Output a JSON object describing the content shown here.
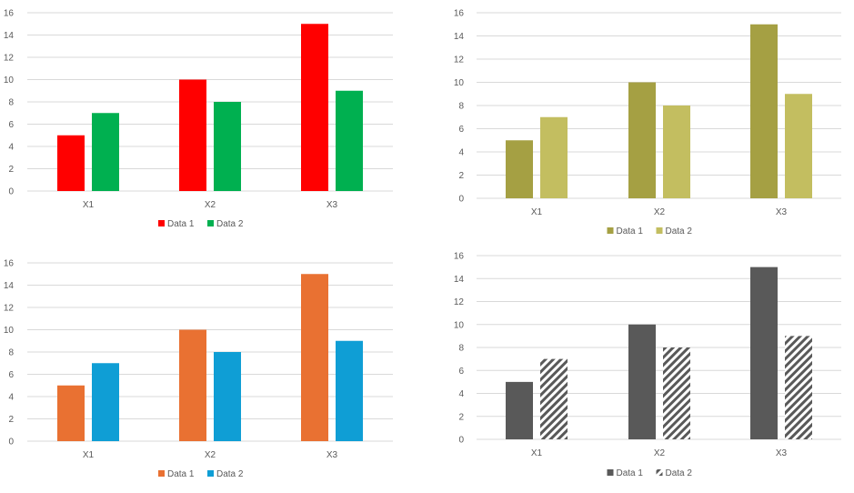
{
  "chart_data": [
    {
      "type": "bar",
      "categories": [
        "X1",
        "X2",
        "X3"
      ],
      "series": [
        {
          "name": "Data 1",
          "values": [
            5,
            10,
            15
          ],
          "color": "#FF0000"
        },
        {
          "name": "Data 2",
          "values": [
            7,
            8,
            9
          ],
          "color": "#00B050"
        }
      ],
      "ylim": [
        0,
        16
      ],
      "yticks": [
        0,
        2,
        4,
        6,
        8,
        10,
        12,
        14,
        16
      ],
      "grid": true,
      "legend": "bottom"
    },
    {
      "type": "bar",
      "categories": [
        "X1",
        "X2",
        "X3"
      ],
      "series": [
        {
          "name": "Data 1",
          "values": [
            5,
            10,
            15
          ],
          "color": "#A5A043"
        },
        {
          "name": "Data 2",
          "values": [
            7,
            8,
            9
          ],
          "color": "#C3BE60"
        }
      ],
      "ylim": [
        0,
        16
      ],
      "yticks": [
        0,
        2,
        4,
        6,
        8,
        10,
        12,
        14,
        16
      ],
      "grid": true,
      "legend": "bottom"
    },
    {
      "type": "bar",
      "categories": [
        "X1",
        "X2",
        "X3"
      ],
      "series": [
        {
          "name": "Data 1",
          "values": [
            5,
            10,
            15
          ],
          "color": "#E97132"
        },
        {
          "name": "Data 2",
          "values": [
            7,
            8,
            9
          ],
          "color": "#0F9ED5"
        }
      ],
      "ylim": [
        0,
        16
      ],
      "yticks": [
        0,
        2,
        4,
        6,
        8,
        10,
        12,
        14,
        16
      ],
      "grid": true,
      "legend": "bottom"
    },
    {
      "type": "bar",
      "categories": [
        "X1",
        "X2",
        "X3"
      ],
      "series": [
        {
          "name": "Data 1",
          "values": [
            5,
            10,
            15
          ],
          "color": "#595959"
        },
        {
          "name": "Data 2",
          "values": [
            7,
            8,
            9
          ],
          "color": "#595959",
          "pattern": "diagonal-hatch"
        }
      ],
      "ylim": [
        0,
        16
      ],
      "yticks": [
        0,
        2,
        4,
        6,
        8,
        10,
        12,
        14,
        16
      ],
      "grid": true,
      "legend": "bottom"
    }
  ]
}
